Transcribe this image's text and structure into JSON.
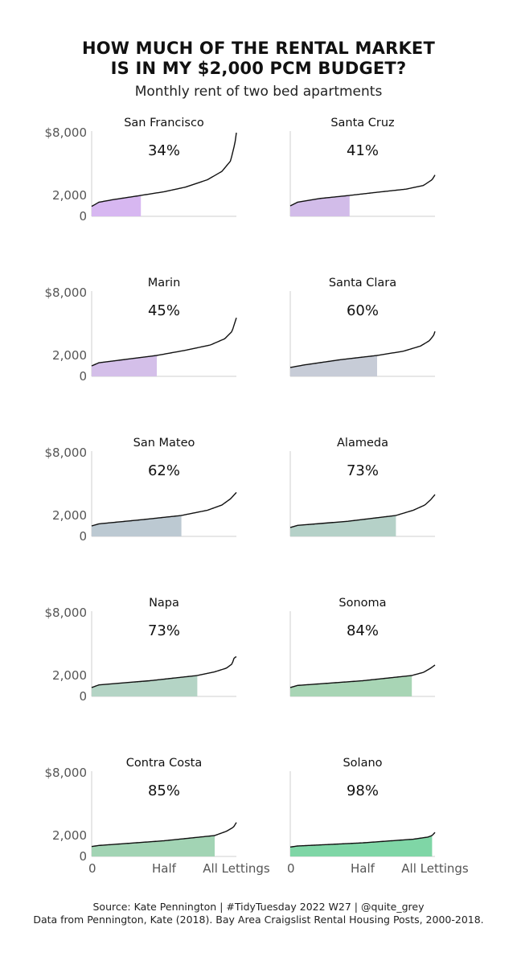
{
  "header": {
    "title_line1": "HOW MUCH OF THE RENTAL MARKET",
    "title_line2": "IS IN MY $2,000 PCM BUDGET?",
    "subtitle": "Monthly rent of two bed apartments"
  },
  "footer": {
    "line1": "Source: Kate Pennington  |  #TidyTuesday 2022 W27  |  @quite_grey",
    "line2": "Data from Pennington, Kate (2018). Bay Area Craigslist Rental Housing Posts, 2000-2018."
  },
  "chart_data": {
    "type": "area",
    "layout": "small-multiples-2x5",
    "budget": 2000,
    "y_axis": {
      "ylim": [
        0,
        8000
      ],
      "ticks": [
        0,
        2000,
        8000
      ],
      "tick_labels": [
        "0",
        "2,000",
        "$8,000"
      ]
    },
    "x_axis": {
      "xlim": [
        0,
        1
      ],
      "ticks": [
        0,
        0.5,
        1
      ],
      "tick_labels": [
        "0",
        "Half",
        "All Lettings"
      ]
    },
    "grid": false,
    "panels": [
      {
        "name": "San Francisco",
        "share_label": "34%",
        "share": 0.34,
        "color": "#d7b7f1",
        "curve": [
          [
            0,
            950
          ],
          [
            0.05,
            1350
          ],
          [
            0.15,
            1600
          ],
          [
            0.34,
            2000
          ],
          [
            0.5,
            2350
          ],
          [
            0.65,
            2800
          ],
          [
            0.8,
            3500
          ],
          [
            0.9,
            4300
          ],
          [
            0.96,
            5300
          ],
          [
            0.99,
            7000
          ],
          [
            1.0,
            8000
          ]
        ]
      },
      {
        "name": "Santa Cruz",
        "share_label": "41%",
        "share": 0.41,
        "color": "#d2bce9",
        "curve": [
          [
            0,
            1000
          ],
          [
            0.05,
            1350
          ],
          [
            0.2,
            1700
          ],
          [
            0.41,
            2000
          ],
          [
            0.6,
            2300
          ],
          [
            0.8,
            2600
          ],
          [
            0.92,
            2950
          ],
          [
            0.98,
            3500
          ],
          [
            1.0,
            3950
          ]
        ]
      },
      {
        "name": "Marin",
        "share_label": "45%",
        "share": 0.45,
        "color": "#d4bfe9",
        "curve": [
          [
            0,
            1000
          ],
          [
            0.05,
            1300
          ],
          [
            0.25,
            1650
          ],
          [
            0.45,
            2000
          ],
          [
            0.65,
            2500
          ],
          [
            0.82,
            3000
          ],
          [
            0.92,
            3600
          ],
          [
            0.97,
            4300
          ],
          [
            1.0,
            5600
          ]
        ]
      },
      {
        "name": "Santa Clara",
        "share_label": "60%",
        "share": 0.6,
        "color": "#c7ccd7",
        "curve": [
          [
            0,
            850
          ],
          [
            0.1,
            1100
          ],
          [
            0.35,
            1600
          ],
          [
            0.6,
            2000
          ],
          [
            0.78,
            2400
          ],
          [
            0.9,
            2900
          ],
          [
            0.96,
            3400
          ],
          [
            0.99,
            3900
          ],
          [
            1.0,
            4300
          ]
        ]
      },
      {
        "name": "San Mateo",
        "share_label": "62%",
        "share": 0.62,
        "color": "#bcc9d2",
        "curve": [
          [
            0,
            1000
          ],
          [
            0.05,
            1200
          ],
          [
            0.35,
            1600
          ],
          [
            0.62,
            2000
          ],
          [
            0.8,
            2500
          ],
          [
            0.9,
            3000
          ],
          [
            0.96,
            3600
          ],
          [
            1.0,
            4200
          ]
        ]
      },
      {
        "name": "Alameda",
        "share_label": "73%",
        "share": 0.73,
        "color": "#b5d1c8",
        "curve": [
          [
            0,
            850
          ],
          [
            0.05,
            1050
          ],
          [
            0.4,
            1450
          ],
          [
            0.73,
            2000
          ],
          [
            0.85,
            2500
          ],
          [
            0.93,
            3000
          ],
          [
            0.97,
            3500
          ],
          [
            1.0,
            4000
          ]
        ]
      },
      {
        "name": "Napa",
        "share_label": "73%",
        "share": 0.73,
        "color": "#b4d4c5",
        "curve": [
          [
            0,
            850
          ],
          [
            0.05,
            1100
          ],
          [
            0.4,
            1500
          ],
          [
            0.73,
            2000
          ],
          [
            0.85,
            2350
          ],
          [
            0.93,
            2700
          ],
          [
            0.97,
            3100
          ],
          [
            0.985,
            3700
          ],
          [
            1.0,
            3800
          ]
        ]
      },
      {
        "name": "Sonoma",
        "share_label": "84%",
        "share": 0.84,
        "color": "#a8d5b5",
        "curve": [
          [
            0,
            850
          ],
          [
            0.05,
            1050
          ],
          [
            0.5,
            1500
          ],
          [
            0.84,
            2000
          ],
          [
            0.92,
            2300
          ],
          [
            0.97,
            2700
          ],
          [
            1.0,
            3000
          ]
        ]
      },
      {
        "name": "Contra Costa",
        "share_label": "85%",
        "share": 0.85,
        "color": "#a2d4b4",
        "curve": [
          [
            0,
            950
          ],
          [
            0.05,
            1050
          ],
          [
            0.5,
            1500
          ],
          [
            0.85,
            2000
          ],
          [
            0.93,
            2400
          ],
          [
            0.98,
            2800
          ],
          [
            1.0,
            3250
          ]
        ]
      },
      {
        "name": "Solano",
        "share_label": "98%",
        "share": 0.98,
        "color": "#7fd6a6",
        "curve": [
          [
            0,
            900
          ],
          [
            0.05,
            1000
          ],
          [
            0.5,
            1300
          ],
          [
            0.85,
            1650
          ],
          [
            0.95,
            1850
          ],
          [
            0.98,
            2000
          ],
          [
            1.0,
            2300
          ]
        ]
      }
    ]
  }
}
